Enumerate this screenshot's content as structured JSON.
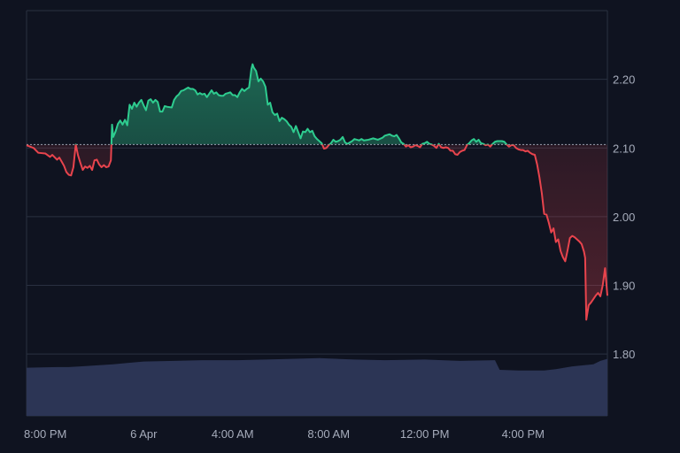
{
  "chart_data": {
    "type": "area",
    "baseline": 2.105,
    "ylim": [
      1.71,
      2.3
    ],
    "xlim": [
      0,
      24.8
    ],
    "grid": true,
    "y_ticks": [
      {
        "value": 2.2,
        "label": "2.20"
      },
      {
        "value": 2.1,
        "label": "2.10"
      },
      {
        "value": 2.0,
        "label": "2.00"
      },
      {
        "value": 1.9,
        "label": "1.90"
      },
      {
        "value": 1.8,
        "label": "1.80"
      }
    ],
    "x_ticks": [
      {
        "value": 0.8,
        "label": "8:00 PM"
      },
      {
        "value": 5.0,
        "label": "6 Apr"
      },
      {
        "value": 8.8,
        "label": "4:00 AM"
      },
      {
        "value": 12.9,
        "label": "8:00 AM"
      },
      {
        "value": 17.0,
        "label": "12:00 PM"
      },
      {
        "value": 21.2,
        "label": "4:00 PM"
      }
    ],
    "colors": {
      "background": "#0f1320",
      "grid": "#2a3040",
      "above": "#2ecc8f",
      "below": "#e8444d",
      "volume": "#2c3555",
      "baseline": "#9aa1b0"
    },
    "series": [
      {
        "values": [
          [
            0,
            2.104
          ],
          [
            0.3,
            2.1
          ],
          [
            0.5,
            2.093
          ],
          [
            0.8,
            2.092
          ],
          [
            1.0,
            2.087
          ],
          [
            1.1,
            2.09
          ],
          [
            1.3,
            2.083
          ],
          [
            1.4,
            2.086
          ],
          [
            1.5,
            2.08
          ],
          [
            1.6,
            2.074
          ],
          [
            1.7,
            2.065
          ],
          [
            1.8,
            2.061
          ],
          [
            1.9,
            2.06
          ],
          [
            2.0,
            2.072
          ],
          [
            2.1,
            2.105
          ],
          [
            2.2,
            2.089
          ],
          [
            2.3,
            2.078
          ],
          [
            2.4,
            2.068
          ],
          [
            2.5,
            2.073
          ],
          [
            2.6,
            2.071
          ],
          [
            2.7,
            2.074
          ],
          [
            2.8,
            2.068
          ],
          [
            2.9,
            2.082
          ],
          [
            3.0,
            2.083
          ],
          [
            3.1,
            2.076
          ],
          [
            3.2,
            2.072
          ],
          [
            3.3,
            2.075
          ],
          [
            3.4,
            2.072
          ],
          [
            3.5,
            2.073
          ],
          [
            3.6,
            2.082
          ],
          [
            3.65,
            2.134
          ],
          [
            3.7,
            2.116
          ],
          [
            3.8,
            2.124
          ],
          [
            3.9,
            2.135
          ],
          [
            4.0,
            2.14
          ],
          [
            4.1,
            2.134
          ],
          [
            4.2,
            2.141
          ],
          [
            4.3,
            2.133
          ],
          [
            4.4,
            2.163
          ],
          [
            4.5,
            2.157
          ],
          [
            4.6,
            2.166
          ],
          [
            4.7,
            2.16
          ],
          [
            4.8,
            2.166
          ],
          [
            4.9,
            2.17
          ],
          [
            5.0,
            2.162
          ],
          [
            5.1,
            2.155
          ],
          [
            5.2,
            2.169
          ],
          [
            5.3,
            2.171
          ],
          [
            5.4,
            2.166
          ],
          [
            5.5,
            2.17
          ],
          [
            5.6,
            2.167
          ],
          [
            5.7,
            2.153
          ],
          [
            5.8,
            2.153
          ],
          [
            5.9,
            2.161
          ],
          [
            6.0,
            2.16
          ],
          [
            6.2,
            2.159
          ],
          [
            6.3,
            2.17
          ],
          [
            6.4,
            2.175
          ],
          [
            6.5,
            2.178
          ],
          [
            6.6,
            2.183
          ],
          [
            6.7,
            2.184
          ],
          [
            6.8,
            2.186
          ],
          [
            6.9,
            2.188
          ],
          [
            7.0,
            2.186
          ],
          [
            7.1,
            2.186
          ],
          [
            7.2,
            2.184
          ],
          [
            7.3,
            2.178
          ],
          [
            7.4,
            2.18
          ],
          [
            7.5,
            2.178
          ],
          [
            7.6,
            2.179
          ],
          [
            7.7,
            2.174
          ],
          [
            7.8,
            2.179
          ],
          [
            7.9,
            2.184
          ],
          [
            8.0,
            2.179
          ],
          [
            8.1,
            2.181
          ],
          [
            8.2,
            2.177
          ],
          [
            8.3,
            2.176
          ],
          [
            8.4,
            2.176
          ],
          [
            8.5,
            2.179
          ],
          [
            8.6,
            2.18
          ],
          [
            8.7,
            2.181
          ],
          [
            8.8,
            2.177
          ],
          [
            8.9,
            2.177
          ],
          [
            9.0,
            2.174
          ],
          [
            9.1,
            2.181
          ],
          [
            9.2,
            2.186
          ],
          [
            9.3,
            2.183
          ],
          [
            9.4,
            2.186
          ],
          [
            9.5,
            2.188
          ],
          [
            9.6,
            2.215
          ],
          [
            9.65,
            2.222
          ],
          [
            9.7,
            2.217
          ],
          [
            9.8,
            2.212
          ],
          [
            9.9,
            2.197
          ],
          [
            10.0,
            2.201
          ],
          [
            10.1,
            2.197
          ],
          [
            10.2,
            2.189
          ],
          [
            10.3,
            2.163
          ],
          [
            10.4,
            2.166
          ],
          [
            10.5,
            2.152
          ],
          [
            10.6,
            2.148
          ],
          [
            10.7,
            2.15
          ],
          [
            10.8,
            2.139
          ],
          [
            10.9,
            2.144
          ],
          [
            11.0,
            2.142
          ],
          [
            11.1,
            2.139
          ],
          [
            11.2,
            2.134
          ],
          [
            11.3,
            2.131
          ],
          [
            11.4,
            2.123
          ],
          [
            11.5,
            2.132
          ],
          [
            11.6,
            2.123
          ],
          [
            11.7,
            2.114
          ],
          [
            11.8,
            2.124
          ],
          [
            11.9,
            2.123
          ],
          [
            12.0,
            2.128
          ],
          [
            12.1,
            2.123
          ],
          [
            12.2,
            2.125
          ],
          [
            12.3,
            2.117
          ],
          [
            12.4,
            2.113
          ],
          [
            12.5,
            2.11
          ],
          [
            12.6,
            2.107
          ],
          [
            12.7,
            2.099
          ],
          [
            12.8,
            2.1
          ],
          [
            12.9,
            2.104
          ],
          [
            13.0,
            2.107
          ],
          [
            13.1,
            2.112
          ],
          [
            13.2,
            2.109
          ],
          [
            13.3,
            2.11
          ],
          [
            13.4,
            2.112
          ],
          [
            13.5,
            2.116
          ],
          [
            13.6,
            2.108
          ],
          [
            13.7,
            2.106
          ],
          [
            13.8,
            2.108
          ],
          [
            13.9,
            2.11
          ],
          [
            14.0,
            2.113
          ],
          [
            14.2,
            2.111
          ],
          [
            14.3,
            2.113
          ],
          [
            14.4,
            2.111
          ],
          [
            14.6,
            2.112
          ],
          [
            14.8,
            2.114
          ],
          [
            15.0,
            2.112
          ],
          [
            15.2,
            2.115
          ],
          [
            15.3,
            2.118
          ],
          [
            15.5,
            2.12
          ],
          [
            15.6,
            2.118
          ],
          [
            15.7,
            2.117
          ],
          [
            15.8,
            2.119
          ],
          [
            15.9,
            2.114
          ],
          [
            16.0,
            2.108
          ],
          [
            16.1,
            2.106
          ],
          [
            16.2,
            2.102
          ],
          [
            16.3,
            2.104
          ],
          [
            16.4,
            2.101
          ],
          [
            16.5,
            2.102
          ],
          [
            16.6,
            2.104
          ],
          [
            16.7,
            2.103
          ],
          [
            16.8,
            2.101
          ],
          [
            16.9,
            2.106
          ],
          [
            17.0,
            2.107
          ],
          [
            17.1,
            2.109
          ],
          [
            17.2,
            2.106
          ],
          [
            17.3,
            2.105
          ],
          [
            17.4,
            2.103
          ],
          [
            17.5,
            2.1
          ],
          [
            17.6,
            2.106
          ],
          [
            17.7,
            2.101
          ],
          [
            17.8,
            2.1
          ],
          [
            17.9,
            2.101
          ],
          [
            18.0,
            2.1
          ],
          [
            18.1,
            2.096
          ],
          [
            18.2,
            2.096
          ],
          [
            18.3,
            2.091
          ],
          [
            18.4,
            2.09
          ],
          [
            18.5,
            2.094
          ],
          [
            18.6,
            2.096
          ],
          [
            18.7,
            2.097
          ],
          [
            18.8,
            2.104
          ],
          [
            18.9,
            2.107
          ],
          [
            19.0,
            2.111
          ],
          [
            19.1,
            2.113
          ],
          [
            19.2,
            2.109
          ],
          [
            19.3,
            2.112
          ],
          [
            19.4,
            2.107
          ],
          [
            19.5,
            2.106
          ],
          [
            19.6,
            2.104
          ],
          [
            19.7,
            2.105
          ],
          [
            19.8,
            2.102
          ],
          [
            19.9,
            2.106
          ],
          [
            20.0,
            2.109
          ],
          [
            20.1,
            2.11
          ],
          [
            20.2,
            2.11
          ],
          [
            20.3,
            2.11
          ],
          [
            20.4,
            2.109
          ],
          [
            20.5,
            2.105
          ],
          [
            20.6,
            2.102
          ],
          [
            20.7,
            2.104
          ],
          [
            20.8,
            2.104
          ],
          [
            20.9,
            2.1
          ],
          [
            21.0,
            2.098
          ],
          [
            21.1,
            2.097
          ],
          [
            21.2,
            2.097
          ],
          [
            21.3,
            2.095
          ],
          [
            21.4,
            2.096
          ],
          [
            21.5,
            2.093
          ],
          [
            21.6,
            2.091
          ],
          [
            21.7,
            2.09
          ],
          [
            21.8,
            2.076
          ],
          [
            21.9,
            2.057
          ],
          [
            22.0,
            2.034
          ],
          [
            22.1,
            2.004
          ],
          [
            22.2,
            2.003
          ],
          [
            22.3,
            1.991
          ],
          [
            22.4,
            1.977
          ],
          [
            22.5,
            1.983
          ],
          [
            22.6,
            1.963
          ],
          [
            22.7,
            1.967
          ],
          [
            22.8,
            1.95
          ],
          [
            22.9,
            1.941
          ],
          [
            23.0,
            1.935
          ],
          [
            23.1,
            1.951
          ],
          [
            23.2,
            1.969
          ],
          [
            23.3,
            1.972
          ],
          [
            23.4,
            1.97
          ],
          [
            23.5,
            1.967
          ],
          [
            23.6,
            1.964
          ],
          [
            23.7,
            1.96
          ],
          [
            23.8,
            1.949
          ],
          [
            23.85,
            1.94
          ],
          [
            23.9,
            1.85
          ],
          [
            24.0,
            1.871
          ],
          [
            24.1,
            1.875
          ],
          [
            24.2,
            1.88
          ],
          [
            24.3,
            1.885
          ],
          [
            24.4,
            1.889
          ],
          [
            24.5,
            1.884
          ],
          [
            24.6,
            1.9
          ],
          [
            24.7,
            1.925
          ],
          [
            24.8,
            1.885
          ]
        ]
      }
    ],
    "volume": [
      [
        0,
        1.78
      ],
      [
        1.3,
        1.781
      ],
      [
        1.8,
        1.781
      ],
      [
        2.3,
        1.782
      ],
      [
        3.7,
        1.785
      ],
      [
        4.3,
        1.787
      ],
      [
        5.0,
        1.789
      ],
      [
        6.3,
        1.79
      ],
      [
        7.5,
        1.791
      ],
      [
        9.0,
        1.791
      ],
      [
        10.2,
        1.792
      ],
      [
        11.3,
        1.793
      ],
      [
        12.5,
        1.794
      ],
      [
        14.0,
        1.792
      ],
      [
        15.3,
        1.791
      ],
      [
        17.0,
        1.792
      ],
      [
        18.5,
        1.79
      ],
      [
        20.0,
        1.791
      ],
      [
        20.2,
        1.777
      ],
      [
        21.0,
        1.776
      ],
      [
        22.1,
        1.776
      ],
      [
        22.6,
        1.778
      ],
      [
        23.3,
        1.782
      ],
      [
        24.2,
        1.785
      ],
      [
        24.5,
        1.79
      ],
      [
        24.8,
        1.793
      ]
    ]
  }
}
